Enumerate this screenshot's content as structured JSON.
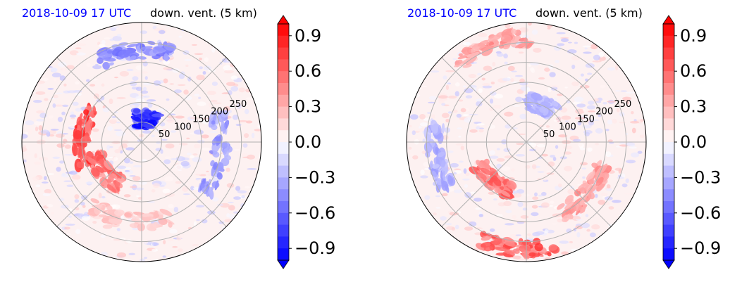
{
  "chart_data": [
    {
      "type": "heatmap",
      "projection": "polar",
      "title_left": "2018-10-09 17 UTC",
      "title_right": "down. vent. (5 km)",
      "radial_ticks": [
        "50",
        "100",
        "150",
        "200",
        "250"
      ],
      "radial_range": [
        0,
        300
      ],
      "grid": true,
      "colormap": "bwr",
      "colorbar": {
        "ticks": [
          "−0.9",
          "−0.6",
          "−0.3",
          "0.0",
          "0.3",
          "0.6",
          "0.9"
        ],
        "values": [
          -0.9,
          -0.6,
          -0.3,
          0.0,
          0.3,
          0.6,
          0.9
        ],
        "range": [
          -1.0,
          1.0
        ],
        "extend": "both"
      },
      "features": [
        {
          "kind": "negative",
          "label": "strong blue cluster near center-north",
          "r": 60,
          "theta_deg": 80,
          "value": -1.0,
          "extent": 45
        },
        {
          "kind": "negative",
          "label": "blue streaks north",
          "r": 230,
          "theta_deg": 95,
          "value": -0.6,
          "extent": 45
        },
        {
          "kind": "negative",
          "label": "blue east/southeast",
          "r": 200,
          "theta_deg": -10,
          "value": -0.5,
          "extent": 60
        },
        {
          "kind": "positive",
          "label": "red spiral band west",
          "r": 150,
          "theta_deg": 175,
          "value": 0.9,
          "extent": 60
        },
        {
          "kind": "positive",
          "label": "red band southwest",
          "r": 120,
          "theta_deg": 220,
          "value": 0.7,
          "extent": 50
        },
        {
          "kind": "positive",
          "label": "light red south",
          "r": 200,
          "theta_deg": 260,
          "value": 0.3,
          "extent": 60
        }
      ]
    },
    {
      "type": "heatmap",
      "projection": "polar",
      "title_left": "2018-10-09 17 UTC",
      "title_right": "down. vent. (5 km)",
      "radial_ticks": [
        "50",
        "100",
        "150",
        "200",
        "250"
      ],
      "radial_range": [
        0,
        300
      ],
      "grid": true,
      "colormap": "bwr",
      "colorbar": {
        "ticks": [
          "−0.9",
          "−0.6",
          "−0.3",
          "0.0",
          "0.3",
          "0.6",
          "0.9"
        ],
        "values": [
          -0.9,
          -0.6,
          -0.3,
          0.0,
          0.3,
          0.6,
          0.9
        ],
        "range": [
          -1.0,
          1.0
        ],
        "extend": "both"
      },
      "features": [
        {
          "kind": "positive",
          "label": "red band southwest",
          "r": 130,
          "theta_deg": 230,
          "value": 0.7,
          "extent": 50
        },
        {
          "kind": "positive",
          "label": "red south edge",
          "r": 270,
          "theta_deg": 265,
          "value": 0.8,
          "extent": 40
        },
        {
          "kind": "positive",
          "label": "red north edge",
          "r": 260,
          "theta_deg": 110,
          "value": 0.5,
          "extent": 45
        },
        {
          "kind": "negative",
          "label": "blue streaks north-center",
          "r": 100,
          "theta_deg": 70,
          "value": -0.4,
          "extent": 40
        },
        {
          "kind": "negative",
          "label": "blue west",
          "r": 230,
          "theta_deg": 190,
          "value": -0.4,
          "extent": 40
        },
        {
          "kind": "positive",
          "label": "red southeast",
          "r": 200,
          "theta_deg": 320,
          "value": 0.5,
          "extent": 45
        }
      ]
    }
  ]
}
